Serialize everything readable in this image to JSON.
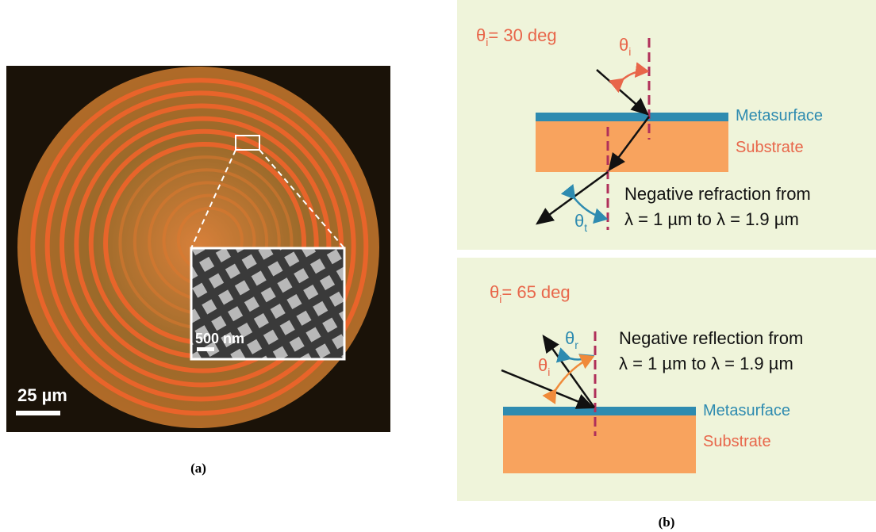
{
  "panel_a": {
    "scale_bar": "25 µm",
    "inset_scale_bar": "500 nm",
    "caption": "(a)"
  },
  "panel_b": {
    "top": {
      "incidence": {
        "symbol": "θ",
        "subscript": "i",
        "text": "= 30 deg"
      },
      "incident_angle_label": {
        "symbol": "θ",
        "subscript": "i"
      },
      "transmitted_angle_label": {
        "symbol": "θ",
        "subscript": "t"
      },
      "metasurface": "Metasurface",
      "substrate": "Substrate",
      "note": [
        "Negative refraction from",
        "λ = 1 µm to λ = 1.9 µm"
      ]
    },
    "bottom": {
      "incidence": {
        "symbol": "θ",
        "subscript": "i",
        "text": "= 65 deg"
      },
      "reflected_angle_label": {
        "symbol": "θ",
        "subscript": "r"
      },
      "incident_angle_label": {
        "symbol": "θ",
        "subscript": "i"
      },
      "metasurface": "Metasurface",
      "substrate": "Substrate",
      "note": [
        "Negative reflection from",
        "λ = 1 µm to λ = 1.9 µm"
      ]
    },
    "caption": "(b)"
  }
}
